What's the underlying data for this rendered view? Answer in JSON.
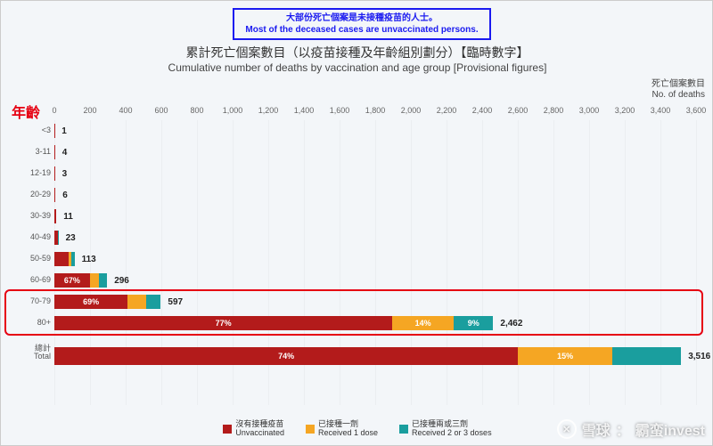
{
  "callout": {
    "zh": "大部份死亡個案是未接種疫苗的人士。",
    "en": "Most of the deceased cases are unvaccinated persons."
  },
  "title_zh": "累計死亡個案數目（以疫苗接種及年齡組別劃分）【臨時數字】",
  "title_en": "Cumulative number of deaths by vaccination and age group [Provisional figures]",
  "y_title_zh": "死亡個案數目",
  "y_title_en": "No. of deaths",
  "age_header": "年齡",
  "axis": {
    "min": 0,
    "max": 3600,
    "step": 200
  },
  "colors": {
    "unvacc": "#b31b1b",
    "dose1": "#f5a623",
    "dose23": "#1a9e9e",
    "bg": "#f3f6f9",
    "highlight": "#e60012",
    "callout_border": "#1a1af0"
  },
  "legend": [
    {
      "color": "#b31b1b",
      "zh": "沒有接種疫苗",
      "en": "Unvaccinated"
    },
    {
      "color": "#f5a623",
      "zh": "已接種一劑",
      "en": "Received 1 dose"
    },
    {
      "color": "#1a9e9e",
      "zh": "已接種兩或三劑",
      "en": "Received 2 or 3 doses"
    }
  ],
  "rows": [
    {
      "label": "<3",
      "total": 1,
      "pct": [
        100,
        0,
        0
      ],
      "show_pct": false
    },
    {
      "label": "3-11",
      "total": 4,
      "pct": [
        100,
        0,
        0
      ],
      "show_pct": false
    },
    {
      "label": "12-19",
      "total": 3,
      "pct": [
        100,
        0,
        0
      ],
      "show_pct": false
    },
    {
      "label": "20-29",
      "total": 6,
      "pct": [
        100,
        0,
        0
      ],
      "show_pct": false
    },
    {
      "label": "30-39",
      "total": 11,
      "pct": [
        100,
        0,
        0
      ],
      "show_pct": false
    },
    {
      "label": "40-49",
      "total": 23,
      "pct": [
        90,
        5,
        5
      ],
      "show_pct": false
    },
    {
      "label": "50-59",
      "total": 113,
      "pct": [
        72,
        14,
        14
      ],
      "show_pct": false
    },
    {
      "label": "60-69",
      "total": 296,
      "pct": [
        67,
        18,
        15
      ],
      "show_pct": true,
      "pct_labels": [
        "67%",
        "18%",
        ""
      ]
    },
    {
      "label": "70-79",
      "total": 597,
      "pct": [
        69,
        17,
        14
      ],
      "show_pct": true,
      "pct_labels": [
        "69%",
        "17%",
        ""
      ]
    },
    {
      "label": "80+",
      "total": 2462,
      "pct": [
        77,
        14,
        9
      ],
      "show_pct": true,
      "pct_labels": [
        "77%",
        "14%",
        ""
      ]
    }
  ],
  "total_row": {
    "label_zh": "總計",
    "label_en": "Total",
    "total": 3516,
    "pct": [
      74,
      15,
      11
    ],
    "pct_labels": [
      "74%",
      "15%",
      ""
    ]
  },
  "highlight_rows": [
    8,
    9
  ],
  "watermark": {
    "brand": "雪球",
    "user": "霸蛮invest"
  }
}
